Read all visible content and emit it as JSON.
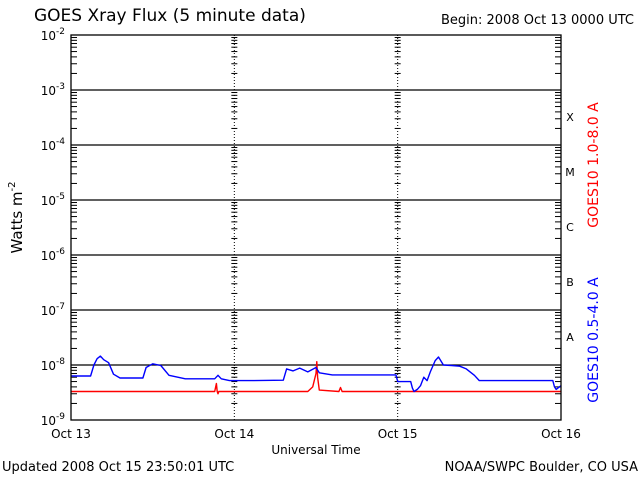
{
  "header": {
    "title": "GOES Xray Flux (5 minute data)",
    "begin": "Begin:  2008 Oct 13 0000 UTC"
  },
  "footer": {
    "updated": "Updated 2008 Oct 15 23:50:01 UTC",
    "credit": "NOAA/SWPC Boulder, CO USA"
  },
  "colors": {
    "long": "#ff0000",
    "short": "#0000ff",
    "frame": "#000000"
  },
  "chart_data": {
    "type": "line",
    "title": "GOES Xray Flux (5 minute data)",
    "xlabel": "Universal Time",
    "ylabel_main": "Watts m",
    "ylabel_sup": "-2",
    "y_scale": "log",
    "ylim": [
      1e-09,
      0.01
    ],
    "xlim": [
      0,
      3
    ],
    "grid": "horizontal lines at each decade; dotted vertical lines at day boundaries",
    "x_ticks": [
      {
        "x": 0,
        "label": "Oct 13"
      },
      {
        "x": 1,
        "label": "Oct 14"
      },
      {
        "x": 2,
        "label": "Oct 15"
      },
      {
        "x": 3,
        "label": "Oct 16"
      }
    ],
    "y_ticks": [
      {
        "exp": -2,
        "base": "10",
        "sup": "-2"
      },
      {
        "exp": -3,
        "base": "10",
        "sup": "-3"
      },
      {
        "exp": -4,
        "base": "10",
        "sup": "-4"
      },
      {
        "exp": -5,
        "base": "10",
        "sup": "-5"
      },
      {
        "exp": -6,
        "base": "10",
        "sup": "-6"
      },
      {
        "exp": -7,
        "base": "10",
        "sup": "-7"
      },
      {
        "exp": -8,
        "base": "10",
        "sup": "-8"
      },
      {
        "exp": -9,
        "base": "10",
        "sup": "-9"
      }
    ],
    "flare_classes": [
      {
        "label": "X",
        "ycenter": 0.00032
      },
      {
        "label": "M",
        "ycenter": 3.2e-05
      },
      {
        "label": "C",
        "ycenter": 3.2e-06
      },
      {
        "label": "B",
        "ycenter": 3.2e-07
      },
      {
        "label": "A",
        "ycenter": 3.2e-08
      }
    ],
    "series": [
      {
        "name": "GOES10 1.0-8.0 A",
        "color": "#ff0000",
        "points": [
          [
            0.0,
            3.3e-09
          ],
          [
            0.88,
            3.3e-09
          ],
          [
            0.89,
            4.6e-09
          ],
          [
            0.895,
            3.3e-09
          ],
          [
            0.9,
            3e-09
          ],
          [
            0.905,
            3.3e-09
          ],
          [
            1.45,
            3.3e-09
          ],
          [
            1.48,
            4e-09
          ],
          [
            1.5,
            7e-09
          ],
          [
            1.505,
            1.15e-08
          ],
          [
            1.51,
            6e-09
          ],
          [
            1.52,
            3.5e-09
          ],
          [
            1.64,
            3.3e-09
          ],
          [
            1.65,
            3.9e-09
          ],
          [
            1.66,
            3.3e-09
          ],
          [
            3.0,
            3.3e-09
          ]
        ]
      },
      {
        "name": "GOES10 0.5-4.0 A",
        "color": "#0000ff",
        "points": [
          [
            0.0,
            6.3e-09
          ],
          [
            0.12,
            6.3e-09
          ],
          [
            0.14,
            1e-08
          ],
          [
            0.16,
            1.3e-08
          ],
          [
            0.18,
            1.45e-08
          ],
          [
            0.2,
            1.25e-08
          ],
          [
            0.23,
            1.1e-08
          ],
          [
            0.26,
            6.8e-09
          ],
          [
            0.3,
            5.8e-09
          ],
          [
            0.44,
            5.8e-09
          ],
          [
            0.46,
            9e-09
          ],
          [
            0.5,
            1.05e-08
          ],
          [
            0.55,
            9.8e-09
          ],
          [
            0.6,
            6.5e-09
          ],
          [
            0.7,
            5.6e-09
          ],
          [
            0.88,
            5.6e-09
          ],
          [
            0.9,
            6.5e-09
          ],
          [
            0.92,
            5.6e-09
          ],
          [
            0.97,
            5.2e-09
          ],
          [
            1.1,
            5.2e-09
          ],
          [
            1.3,
            5.3e-09
          ],
          [
            1.32,
            8.5e-09
          ],
          [
            1.36,
            7.8e-09
          ],
          [
            1.4,
            8.8e-09
          ],
          [
            1.45,
            7.5e-09
          ],
          [
            1.5,
            9e-09
          ],
          [
            1.52,
            7.2e-09
          ],
          [
            1.6,
            6.6e-09
          ],
          [
            1.99,
            6.6e-09
          ],
          [
            2.0,
            5e-09
          ],
          [
            2.08,
            5e-09
          ],
          [
            2.09,
            3.8e-09
          ],
          [
            2.1,
            3.3e-09
          ],
          [
            2.12,
            3.6e-09
          ],
          [
            2.14,
            4.2e-09
          ],
          [
            2.16,
            6e-09
          ],
          [
            2.18,
            5.2e-09
          ],
          [
            2.2,
            7.5e-09
          ],
          [
            2.23,
            1.2e-08
          ],
          [
            2.25,
            1.4e-08
          ],
          [
            2.28,
            1e-08
          ],
          [
            2.33,
            9.8e-09
          ],
          [
            2.38,
            9.5e-09
          ],
          [
            2.42,
            8.5e-09
          ],
          [
            2.47,
            6.5e-09
          ],
          [
            2.5,
            5.2e-09
          ],
          [
            2.95,
            5.2e-09
          ],
          [
            2.96,
            4e-09
          ],
          [
            2.97,
            3.6e-09
          ],
          [
            3.0,
            4.2e-09
          ]
        ]
      }
    ]
  }
}
